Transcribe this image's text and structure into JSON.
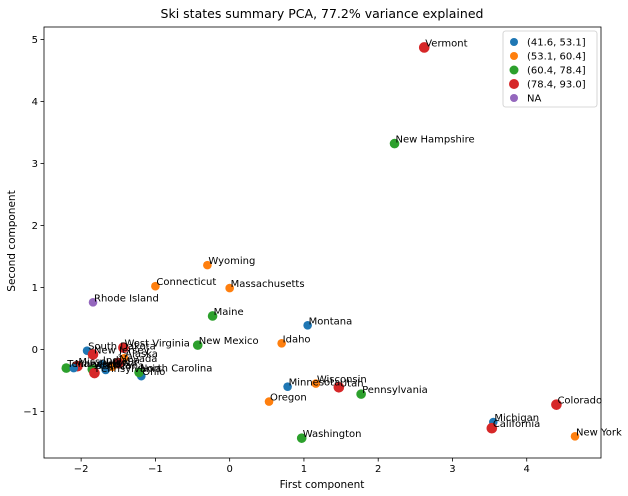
{
  "chart_data": {
    "type": "scatter",
    "title": "Ski states summary PCA, 77.2% variance explained",
    "xlabel": "First component",
    "ylabel": "Second component",
    "xlim": [
      -2.5,
      5.0
    ],
    "ylim": [
      -1.75,
      5.2
    ],
    "xticks": [
      -2,
      -1,
      0,
      1,
      2,
      3,
      4
    ],
    "yticks": [
      -1,
      0,
      1,
      2,
      3,
      4,
      5
    ],
    "grid": false,
    "legend_position": "top-right",
    "legend": [
      {
        "label": "(41.6, 53.1]",
        "color": "#1f77b4",
        "size": 6
      },
      {
        "label": "(53.1, 60.4]",
        "color": "#ff7f0e",
        "size": 6
      },
      {
        "label": "(60.4, 78.4]",
        "color": "#2ca02c",
        "size": 7
      },
      {
        "label": "(78.4, 93.0]",
        "color": "#d62728",
        "size": 8
      },
      {
        "label": "NA",
        "color": "#9467bd",
        "size": 6
      }
    ],
    "points": [
      {
        "label": "Vermont",
        "x": 2.62,
        "y": 4.87,
        "group": 3
      },
      {
        "label": "New Hampshire",
        "x": 2.22,
        "y": 3.32,
        "group": 2
      },
      {
        "label": "Wyoming",
        "x": -0.3,
        "y": 1.36,
        "group": 1
      },
      {
        "label": "Connecticut",
        "x": -1.0,
        "y": 1.02,
        "group": 1
      },
      {
        "label": "Massachusetts",
        "x": 0.0,
        "y": 0.99,
        "group": 1
      },
      {
        "label": "Rhode Island",
        "x": -1.84,
        "y": 0.76,
        "group": 4
      },
      {
        "label": "Maine",
        "x": -0.23,
        "y": 0.54,
        "group": 2
      },
      {
        "label": "Montana",
        "x": 1.05,
        "y": 0.39,
        "group": 0
      },
      {
        "label": "Idaho",
        "x": 0.7,
        "y": 0.1,
        "group": 1
      },
      {
        "label": "New Mexico",
        "x": -0.43,
        "y": 0.07,
        "group": 2
      },
      {
        "label": "West Virginia",
        "x": -1.43,
        "y": 0.03,
        "group": 3
      },
      {
        "label": "South Dakota",
        "x": -1.92,
        "y": -0.02,
        "group": 0
      },
      {
        "label": "New Jersey",
        "x": -1.84,
        "y": -0.08,
        "group": 3
      },
      {
        "label": "Alaska",
        "x": -1.42,
        "y": -0.14,
        "group": 1
      },
      {
        "label": "Nevada",
        "x": -1.5,
        "y": -0.22,
        "group": 3
      },
      {
        "label": "Indiana",
        "x": -1.72,
        "y": -0.24,
        "group": 0
      },
      {
        "label": "Iowa",
        "x": -1.58,
        "y": -0.28,
        "group": 1
      },
      {
        "label": "Missouri",
        "x": -2.05,
        "y": -0.27,
        "group": 3
      },
      {
        "label": "Tennessee",
        "x": -2.2,
        "y": -0.3,
        "group": 2
      },
      {
        "label": "Maryland",
        "x": -2.1,
        "y": -0.3,
        "group": 0
      },
      {
        "label": "Arizona",
        "x": -1.67,
        "y": -0.33,
        "group": 0
      },
      {
        "label": "Virginia",
        "x": -1.85,
        "y": -0.32,
        "group": 2
      },
      {
        "label": "Pennsylvania ",
        "x": -1.82,
        "y": -0.38,
        "group": 3
      },
      {
        "label": "Ohio",
        "x": -1.19,
        "y": -0.43,
        "group": 0
      },
      {
        "label": "North Carolina",
        "x": -1.22,
        "y": -0.37,
        "group": 2
      },
      {
        "label": "Wisconsin",
        "x": 1.16,
        "y": -0.55,
        "group": 1
      },
      {
        "label": "Utah",
        "x": 1.47,
        "y": -0.61,
        "group": 3
      },
      {
        "label": "Minnesota",
        "x": 0.78,
        "y": -0.6,
        "group": 0
      },
      {
        "label": "Pennsylvania",
        "x": 1.77,
        "y": -0.72,
        "group": 2
      },
      {
        "label": "Oregon",
        "x": 0.53,
        "y": -0.84,
        "group": 1
      },
      {
        "label": "Colorado",
        "x": 4.4,
        "y": -0.89,
        "group": 3
      },
      {
        "label": "Michigan",
        "x": 3.55,
        "y": -1.17,
        "group": 0
      },
      {
        "label": "California",
        "x": 3.53,
        "y": -1.27,
        "group": 3
      },
      {
        "label": "New York",
        "x": 4.65,
        "y": -1.4,
        "group": 1
      },
      {
        "label": "Washington",
        "x": 0.97,
        "y": -1.43,
        "group": 2
      }
    ]
  }
}
